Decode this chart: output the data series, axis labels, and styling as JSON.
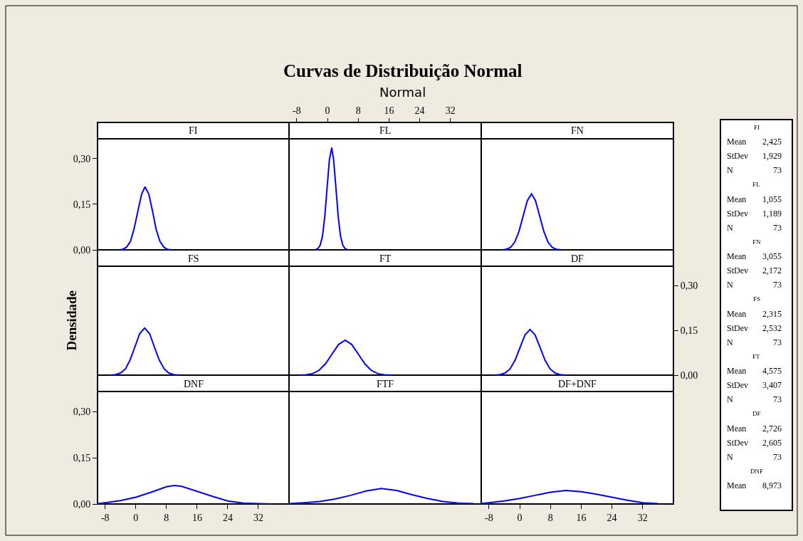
{
  "chart_data": [
    {
      "type": "line",
      "title": "FI",
      "annotations": [
        "Curvas de Distribuição Normal",
        "Normal"
      ],
      "tick_labels": "y",
      "xlim": [
        -10,
        40
      ],
      "ylim": [
        0,
        0.365
      ],
      "yticks": [
        {
          "value": 0,
          "label": "0,00"
        },
        {
          "value": 0.15,
          "label": "0,15"
        },
        {
          "value": 0.3,
          "label": "0,30"
        }
      ],
      "x": [
        -4.3,
        -3.4,
        -2.4,
        -1.4,
        -0.5,
        0.5,
        1.5,
        2.4,
        3.4,
        4.4,
        5.3,
        6.3,
        7.3,
        8.2,
        9.2
      ],
      "series": [
        {
          "color": "#0000ff",
          "values": [
            0.0,
            0.002,
            0.009,
            0.028,
            0.067,
            0.125,
            0.183,
            0.207,
            0.183,
            0.125,
            0.067,
            0.028,
            0.009,
            0.002,
            0.0
          ]
        }
      ]
    },
    {
      "type": "line",
      "title": "FL",
      "tick_labels": "x",
      "xlim": [
        -10,
        40
      ],
      "ylim": [
        0,
        0.365
      ],
      "xticks": [
        -8,
        0,
        8,
        16,
        24,
        32
      ],
      "x": [
        -3.1,
        -2.5,
        -1.9,
        -1.3,
        -0.7,
        -0.1,
        0.5,
        1.1,
        1.6,
        2.2,
        2.8,
        3.4,
        4.0,
        4.6,
        5.2
      ],
      "series": [
        {
          "color": "#0000ff",
          "values": [
            0.001,
            0.004,
            0.015,
            0.045,
            0.109,
            0.204,
            0.296,
            0.336,
            0.296,
            0.204,
            0.109,
            0.045,
            0.015,
            0.004,
            0.001
          ]
        }
      ]
    },
    {
      "type": "line",
      "title": "FN",
      "annotations": [
        "FI",
        "Mean 2,425",
        "StDev 1,929",
        "N 73",
        "FL",
        "Mean 1,055",
        "StDev 1,189",
        "N 73",
        "FN",
        "Mean 3,055",
        "StDev 2,172",
        "N 73",
        "FS",
        "Mean 2,315",
        "StDev 2,532",
        "N 73",
        "FT",
        "Mean 4,575",
        "StDev 3,407",
        "N 73",
        "DF",
        "Mean 2,726",
        "StDev 2,605",
        "N 73",
        "DNF",
        "Mean 8,973"
      ],
      "tick_labels": false,
      "xlim": [
        -10,
        40
      ],
      "ylim": [
        0,
        0.365
      ],
      "x": [
        -4.5,
        -3.5,
        -2.4,
        -1.3,
        -0.2,
        0.9,
        2.0,
        3.1,
        4.1,
        5.2,
        6.3,
        7.4,
        8.5,
        9.6,
        10.7
      ],
      "series": [
        {
          "color": "#0000ff",
          "values": [
            0.0,
            0.002,
            0.008,
            0.025,
            0.06,
            0.111,
            0.162,
            0.184,
            0.162,
            0.111,
            0.06,
            0.025,
            0.008,
            0.002,
            0.0
          ]
        }
      ]
    },
    {
      "type": "line",
      "title": "FS",
      "ylabel": "Densidade",
      "tick_labels": false,
      "xlim": [
        -10,
        40
      ],
      "ylim": [
        0,
        0.365
      ],
      "x": [
        -6.5,
        -5.3,
        -4.0,
        -2.7,
        -1.5,
        -0.2,
        1.0,
        2.3,
        3.6,
        4.8,
        6.1,
        7.4,
        8.6,
        9.9,
        11.2
      ],
      "series": [
        {
          "color": "#0000ff",
          "values": [
            0.0,
            0.002,
            0.007,
            0.021,
            0.051,
            0.096,
            0.139,
            0.158,
            0.139,
            0.096,
            0.051,
            0.021,
            0.007,
            0.002,
            0.0
          ]
        }
      ]
    },
    {
      "type": "line",
      "title": "FT",
      "tick_labels": false,
      "xlim": [
        -10,
        40
      ],
      "ylim": [
        0,
        0.365
      ],
      "x": [
        -7.3,
        -5.6,
        -3.9,
        -2.2,
        -0.5,
        1.2,
        2.9,
        4.6,
        6.3,
        8.0,
        9.7,
        11.4,
        13.1,
        14.8,
        16.5
      ],
      "series": [
        {
          "color": "#0000ff",
          "values": [
            0.0,
            0.001,
            0.005,
            0.016,
            0.038,
            0.071,
            0.103,
            0.117,
            0.103,
            0.071,
            0.038,
            0.016,
            0.005,
            0.001,
            0.0
          ]
        }
      ]
    },
    {
      "type": "line",
      "title": "DF",
      "tick_labels": "y",
      "xlim": [
        -10,
        40
      ],
      "ylim": [
        0,
        0.365
      ],
      "yticks": [
        {
          "value": 0,
          "label": "0,00"
        },
        {
          "value": 0.15,
          "label": "0,15"
        },
        {
          "value": 0.3,
          "label": "0,30"
        }
      ],
      "x": [
        -6.4,
        -5.1,
        -3.8,
        -2.5,
        -1.2,
        0.1,
        1.4,
        2.7,
        4.0,
        5.3,
        6.6,
        7.9,
        9.2,
        10.5,
        11.8
      ],
      "series": [
        {
          "color": "#0000ff",
          "values": [
            0.0,
            0.002,
            0.007,
            0.021,
            0.05,
            0.093,
            0.135,
            0.153,
            0.135,
            0.093,
            0.05,
            0.021,
            0.007,
            0.002,
            0.0
          ]
        }
      ]
    },
    {
      "type": "line",
      "title": "DNF",
      "xlim": [
        -10,
        40
      ],
      "ylim": [
        0,
        0.365
      ],
      "xticks": [
        -8,
        0,
        8,
        16,
        24,
        32
      ],
      "yticks": [
        {
          "value": 0,
          "label": "0,00"
        },
        {
          "value": 0.15,
          "label": "0,15"
        },
        {
          "value": 0.3,
          "label": "0,30"
        }
      ],
      "x": [
        -10,
        -8,
        -4,
        0,
        4,
        8,
        10,
        12,
        16,
        20,
        24,
        28,
        32,
        36
      ],
      "series": [
        {
          "color": "#0000ff",
          "values": [
            0.001,
            0.004,
            0.011,
            0.022,
            0.038,
            0.056,
            0.06,
            0.057,
            0.041,
            0.025,
            0.01,
            0.003,
            0.001,
            0.0
          ]
        }
      ]
    },
    {
      "type": "line",
      "title": "FTF",
      "tick_labels": false,
      "xlim": [
        -10,
        40
      ],
      "ylim": [
        0,
        0.365
      ],
      "x": [
        -10,
        -6,
        -2,
        2,
        6,
        10,
        14,
        18,
        22,
        26,
        30,
        34,
        38
      ],
      "series": [
        {
          "color": "#0000ff",
          "values": [
            0.001,
            0.004,
            0.008,
            0.016,
            0.028,
            0.042,
            0.05,
            0.044,
            0.03,
            0.018,
            0.008,
            0.003,
            0.001
          ]
        }
      ]
    },
    {
      "type": "line",
      "title": "DF+DNF",
      "tick_labels": "x",
      "xlim": [
        -10,
        40
      ],
      "ylim": [
        0,
        0.365
      ],
      "xticks": [
        -8,
        0,
        8,
        16,
        24,
        32
      ],
      "x": [
        -10,
        -8,
        -4,
        0,
        4,
        8,
        12,
        16,
        20,
        24,
        28,
        32,
        36
      ],
      "series": [
        {
          "color": "#0000ff",
          "values": [
            0.002,
            0.004,
            0.01,
            0.018,
            0.028,
            0.038,
            0.044,
            0.04,
            0.032,
            0.022,
            0.012,
            0.004,
            0.001
          ]
        }
      ]
    }
  ]
}
